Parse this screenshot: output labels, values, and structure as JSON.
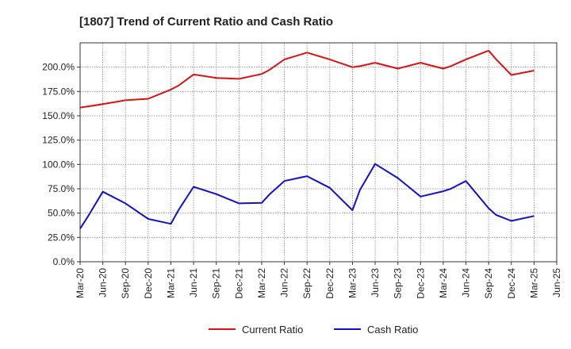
{
  "chart_data": {
    "type": "line",
    "title": "[1807]  Trend of Current Ratio and Cash Ratio",
    "xlabel": "",
    "ylabel": "",
    "ylim": [
      0,
      225
    ],
    "yticks": [
      0,
      25,
      50,
      75,
      100,
      125,
      150,
      175,
      200
    ],
    "ytick_labels": [
      "0.0%",
      "25.0%",
      "50.0%",
      "75.0%",
      "100.0%",
      "125.0%",
      "150.0%",
      "175.0%",
      "200.0%"
    ],
    "x_ticks": [
      "Mar-20",
      "Jun-20",
      "Sep-20",
      "Dec-20",
      "Mar-21",
      "Jun-21",
      "Sep-21",
      "Dec-21",
      "Mar-22",
      "Jun-22",
      "Sep-22",
      "Dec-22",
      "Mar-23",
      "Jun-23",
      "Sep-23",
      "Dec-23",
      "Mar-24",
      "Jun-24",
      "Sep-24",
      "Dec-24",
      "Mar-25",
      "Jun-25"
    ],
    "x": [
      "Mar-20",
      "Apr-20",
      "Jun-20",
      "Sep-20",
      "Dec-20",
      "Mar-21",
      "Apr-21",
      "Jun-21",
      "Sep-21",
      "Dec-21",
      "Mar-22",
      "Apr-22",
      "Jun-22",
      "Sep-22",
      "Dec-22",
      "Mar-23",
      "Apr-23",
      "Jun-23",
      "Sep-23",
      "Dec-23",
      "Mar-24",
      "Apr-24",
      "Jun-24",
      "Sep-24",
      "Oct-24",
      "Dec-24",
      "Mar-25"
    ],
    "series": [
      {
        "name": "Current Ratio",
        "color": "#dd1111",
        "values": [
          158.5,
          159.5,
          162,
          166,
          167.5,
          177,
          181,
          192.5,
          189,
          188,
          193,
          197,
          208,
          215,
          208,
          200,
          201,
          204.5,
          198.5,
          204.5,
          198.5,
          201,
          208,
          217,
          208,
          192,
          196.5
        ]
      },
      {
        "name": "Cash Ratio",
        "color": "#1111cc",
        "values": [
          34,
          46,
          72,
          60,
          44,
          39,
          53,
          77,
          69.5,
          60,
          60.5,
          69,
          83,
          88,
          76,
          53,
          74,
          100.5,
          86,
          67,
          72.5,
          75,
          83,
          55,
          48,
          42,
          47
        ]
      }
    ],
    "grid": true,
    "legend": "bottom-center"
  }
}
